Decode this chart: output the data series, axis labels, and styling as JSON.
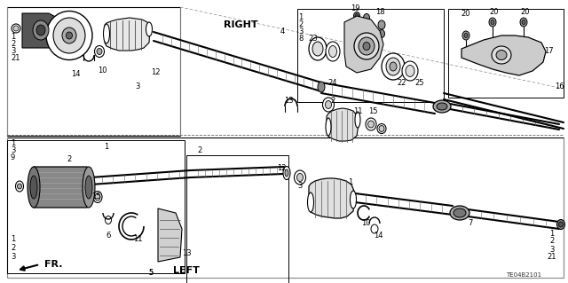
{
  "background_color": "#ffffff",
  "line_color": "#000000",
  "diagram_code": "TE04B2101",
  "label_RIGHT": "RIGHT",
  "label_LEFT": "LEFT",
  "label_FR": "FR.",
  "fs_small": 6,
  "fs_label": 8,
  "fs_bold": 8
}
